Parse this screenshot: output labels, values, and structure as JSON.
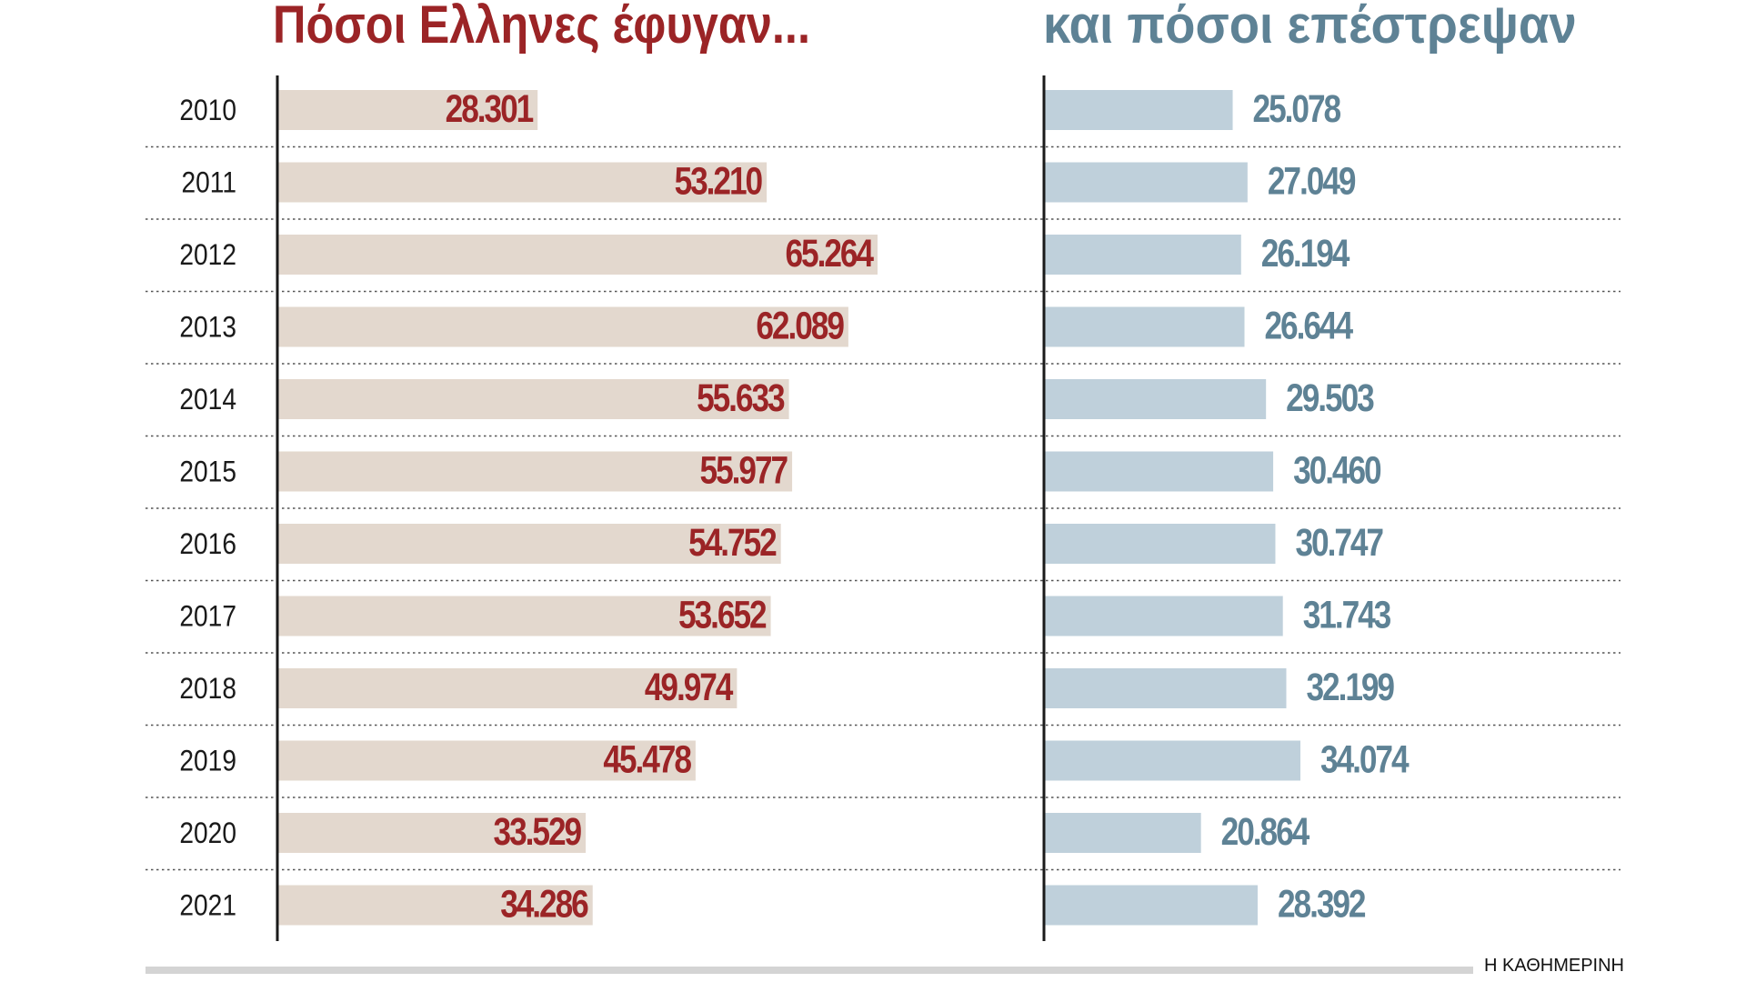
{
  "titles": {
    "left": "Πόσοι Ελληνες έφυγαν...",
    "right": "και πόσοι επέστρεψαν"
  },
  "source": "Η ΚΑΘΗΜΕΡΙΝΗ",
  "colors": {
    "left_bar": "#e3d8ce",
    "left_text": "#9b2426",
    "right_bar": "#bfd0db",
    "right_text": "#5e8295",
    "axis": "#1a1a1a",
    "separator": "#555555"
  },
  "chart_data": [
    {
      "type": "bar",
      "orientation": "horizontal",
      "title": "Πόσοι Ελληνες έφυγαν...",
      "categories": [
        "2010",
        "2011",
        "2012",
        "2013",
        "2014",
        "2015",
        "2016",
        "2017",
        "2018",
        "2019",
        "2020",
        "2021"
      ],
      "values": [
        28301,
        53210,
        65264,
        62089,
        55633,
        55977,
        54752,
        53652,
        49974,
        45478,
        33529,
        34286
      ],
      "value_labels": [
        "28.301",
        "53.210",
        "65.264",
        "62.089",
        "55.633",
        "55.977",
        "54.752",
        "53.652",
        "49.974",
        "45.478",
        "33.529",
        "34.286"
      ],
      "label_position": "inside-end",
      "xlim": [
        0,
        80000
      ]
    },
    {
      "type": "bar",
      "orientation": "horizontal",
      "title": "και πόσοι επέστρεψαν",
      "categories": [
        "2010",
        "2011",
        "2012",
        "2013",
        "2014",
        "2015",
        "2016",
        "2017",
        "2018",
        "2019",
        "2020",
        "2021"
      ],
      "values": [
        25078,
        27049,
        26194,
        26644,
        29503,
        30460,
        30747,
        31743,
        32199,
        34074,
        20864,
        28392
      ],
      "value_labels": [
        "25.078",
        "27.049",
        "26.194",
        "26.644",
        "29.503",
        "30.460",
        "30.747",
        "31.743",
        "32.199",
        "34.074",
        "20.864",
        "28.392"
      ],
      "label_position": "outside-end",
      "xlim": [
        0,
        80000
      ]
    }
  ]
}
